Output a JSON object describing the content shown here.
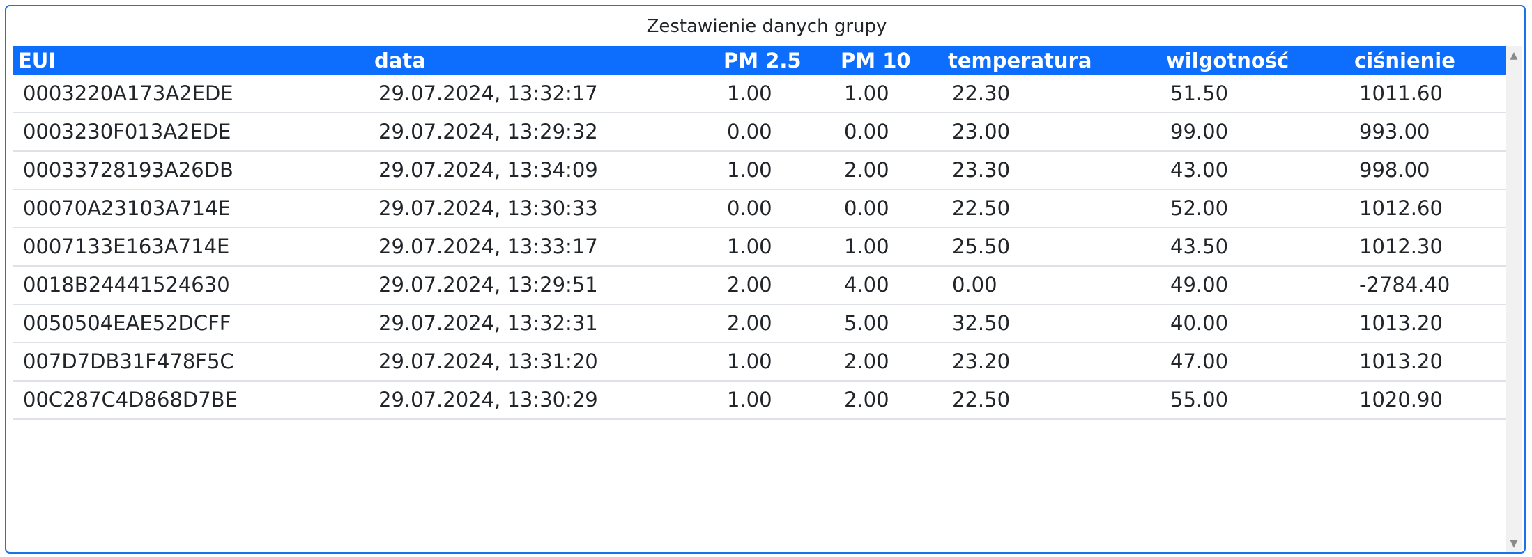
{
  "panel": {
    "title": "Zestawienie danych grupy"
  },
  "table": {
    "headers": {
      "eui": "EUI",
      "data": "data",
      "pm25": "PM 2.5",
      "pm10": "PM 10",
      "temperatura": "temperatura",
      "wilgotnosc": "wilgotność",
      "cisnienie": "ciśnienie"
    },
    "rows": [
      {
        "eui": "0003220A173A2EDE",
        "data": "29.07.2024, 13:32:17",
        "pm25": "1.00",
        "pm10": "1.00",
        "temperatura": "22.30",
        "wilgotnosc": "51.50",
        "cisnienie": "1011.60"
      },
      {
        "eui": "0003230F013A2EDE",
        "data": "29.07.2024, 13:29:32",
        "pm25": "0.00",
        "pm10": "0.00",
        "temperatura": "23.00",
        "wilgotnosc": "99.00",
        "cisnienie": "993.00"
      },
      {
        "eui": "00033728193A26DB",
        "data": "29.07.2024, 13:34:09",
        "pm25": "1.00",
        "pm10": "2.00",
        "temperatura": "23.30",
        "wilgotnosc": "43.00",
        "cisnienie": "998.00"
      },
      {
        "eui": "00070A23103A714E",
        "data": "29.07.2024, 13:30:33",
        "pm25": "0.00",
        "pm10": "0.00",
        "temperatura": "22.50",
        "wilgotnosc": "52.00",
        "cisnienie": "1012.60"
      },
      {
        "eui": "0007133E163A714E",
        "data": "29.07.2024, 13:33:17",
        "pm25": "1.00",
        "pm10": "1.00",
        "temperatura": "25.50",
        "wilgotnosc": "43.50",
        "cisnienie": "1012.30"
      },
      {
        "eui": "0018B24441524630",
        "data": "29.07.2024, 13:29:51",
        "pm25": "2.00",
        "pm10": "4.00",
        "temperatura": "0.00",
        "wilgotnosc": "49.00",
        "cisnienie": "-2784.40"
      },
      {
        "eui": "0050504EAE52DCFF",
        "data": "29.07.2024, 13:32:31",
        "pm25": "2.00",
        "pm10": "5.00",
        "temperatura": "32.50",
        "wilgotnosc": "40.00",
        "cisnienie": "1013.20"
      },
      {
        "eui": "007D7DB31F478F5C",
        "data": "29.07.2024, 13:31:20",
        "pm25": "1.00",
        "pm10": "2.00",
        "temperatura": "23.20",
        "wilgotnosc": "47.00",
        "cisnienie": "1013.20"
      },
      {
        "eui": "00C287C4D868D7BE",
        "data": "29.07.2024, 13:30:29",
        "pm25": "1.00",
        "pm10": "2.00",
        "temperatura": "22.50",
        "wilgotnosc": "55.00",
        "cisnienie": "1020.90"
      }
    ]
  },
  "scrollbar": {
    "up_icon": "triangle-up-icon",
    "down_icon": "triangle-down-icon",
    "up_glyph": "▲",
    "down_glyph": "▼"
  },
  "colors": {
    "header_bg": "#0d6efd",
    "frame_border": "#1a73e8"
  }
}
